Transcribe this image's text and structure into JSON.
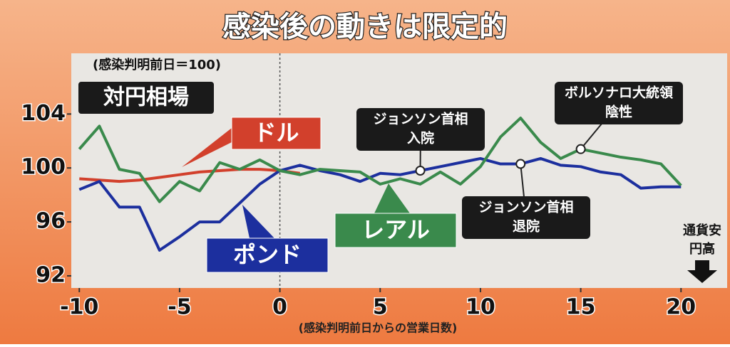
{
  "chart_data": {
    "type": "line",
    "title": "感染後の動きは限定的",
    "subtitle": "対円相場",
    "note": "(感染判明前日＝100)",
    "x_label": "(感染判明前日からの営業日数)",
    "direction_label": [
      "通貨安",
      "円高"
    ],
    "x": [
      -10,
      -9,
      -8,
      -7,
      -6,
      -5,
      -4,
      -3,
      -2,
      -1,
      0,
      1,
      2,
      3,
      4,
      5,
      6,
      7,
      8,
      9,
      10,
      11,
      12,
      13,
      14,
      15,
      16,
      17,
      18,
      19,
      20
    ],
    "series": [
      {
        "name": "ドル",
        "color": "#d2402c",
        "values": [
          99.2,
          99.1,
          99.0,
          99.1,
          99.3,
          99.5,
          99.7,
          99.8,
          99.9,
          99.9,
          99.8,
          99.6,
          null,
          null,
          null,
          null,
          null,
          null,
          null,
          null,
          null,
          null,
          null,
          null,
          null,
          null,
          null,
          null,
          null,
          null,
          null
        ]
      },
      {
        "name": "ポンド",
        "color": "#1c2f9e",
        "values": [
          98.4,
          99.0,
          97.1,
          97.1,
          93.9,
          94.9,
          96.0,
          96.0,
          97.4,
          98.8,
          99.8,
          100.2,
          99.8,
          99.5,
          99.0,
          99.6,
          99.5,
          99.8,
          100.1,
          100.4,
          100.7,
          100.3,
          100.3,
          100.7,
          100.2,
          100.1,
          99.7,
          99.5,
          98.5,
          98.6,
          98.6
        ]
      },
      {
        "name": "レアル",
        "color": "#3a8a4c",
        "values": [
          101.4,
          103.1,
          99.9,
          99.6,
          97.5,
          99.0,
          98.3,
          100.4,
          99.9,
          100.6,
          99.8,
          99.5,
          99.9,
          99.8,
          99.7,
          98.8,
          99.2,
          98.8,
          99.7,
          98.8,
          100.1,
          102.3,
          103.7,
          101.9,
          100.7,
          101.4,
          101.1,
          100.8,
          100.6,
          100.3,
          98.7
        ]
      }
    ],
    "annotations": [
      {
        "lines": [
          "ジョンソン首相",
          "入院"
        ],
        "x": 7,
        "y": 99.8
      },
      {
        "lines": [
          "ジョンソン首相",
          "退院"
        ],
        "x": 12,
        "y": 100.3
      },
      {
        "lines": [
          "ボルソナロ大統領",
          "陰性"
        ],
        "x": 15,
        "y": 101.4
      }
    ],
    "xlim": [
      -10.4,
      22.3
    ],
    "ylim": [
      91.1,
      108.5
    ],
    "xticks": [
      -10,
      -5,
      0,
      5,
      10,
      15,
      20
    ],
    "yticks": [
      92,
      96,
      100,
      104
    ]
  }
}
